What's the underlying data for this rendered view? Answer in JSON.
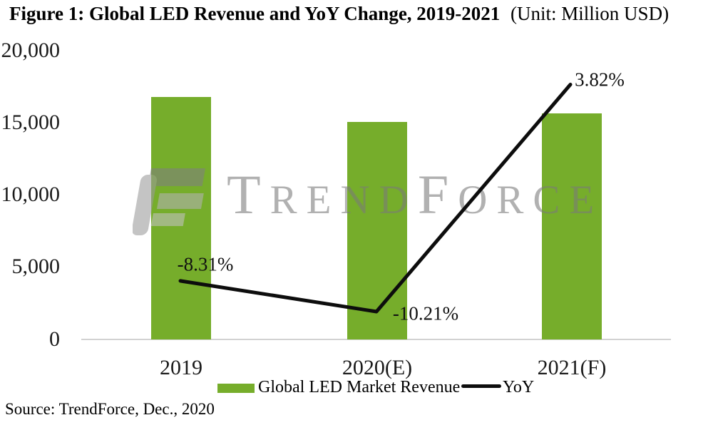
{
  "title": {
    "main": "Figure 1: Global LED Revenue and YoY Change, 2019-2021",
    "unit": "(Unit: Million USD)"
  },
  "source": "Source: TrendForce, Dec., 2020",
  "watermark": {
    "text": "TrendForce",
    "parts": [
      "T",
      "REND",
      "F",
      "ORCE"
    ]
  },
  "colors": {
    "bar_green": "#76ad2b",
    "line_black": "#0d0d0d",
    "axis_gray": "#d2d2d2",
    "watermark_gray": "#7a7a7a"
  },
  "y_axis": {
    "ticks": [
      "20,000",
      "15,000",
      "10,000",
      "5,000",
      "0"
    ]
  },
  "x_axis": {
    "categories": [
      "2019",
      "2020(E)",
      "2021(F)"
    ]
  },
  "legend": {
    "items": [
      {
        "label": "Global LED Market Revenue",
        "swatch": "bar"
      },
      {
        "label": "YoY",
        "swatch": "line"
      }
    ]
  },
  "chart_data": {
    "type": "bar",
    "categories": [
      "2019",
      "2020(E)",
      "2021(F)"
    ],
    "series": [
      {
        "name": "Global LED Market Revenue",
        "type": "bar",
        "axis": "left",
        "unit": "Million USD",
        "values": [
          16800,
          15080,
          15650
        ]
      },
      {
        "name": "YoY",
        "type": "line",
        "axis": "right",
        "unit": "%",
        "values": [
          -8.31,
          -10.21,
          3.82
        ],
        "labels": [
          "-8.31%",
          "-10.21%",
          "3.82%"
        ]
      }
    ],
    "title": "Figure 1: Global LED Revenue and YoY Change, 2019-2021",
    "unit_note": "Unit: Million USD",
    "xlabel": "",
    "ylabel": "",
    "ylim_left": [
      0,
      20000
    ],
    "y_ticks_left": [
      0,
      5000,
      10000,
      15000,
      20000
    ],
    "grid": false,
    "legend_position": "bottom",
    "source": "Source: TrendForce, Dec., 2020"
  }
}
